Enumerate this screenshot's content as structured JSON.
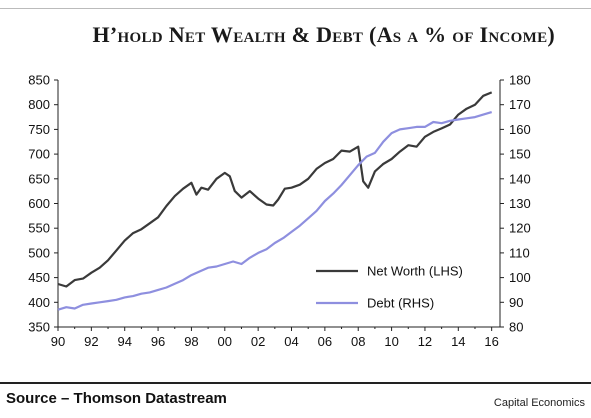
{
  "title": "H’hold Net Wealth & Debt (As a % of Income)",
  "source": "Source – Thomson Datastream",
  "credit": "Capital Economics",
  "chart_data": {
    "type": "line",
    "title": "H’hold Net Wealth & Debt (As a % of Income)",
    "xlabel": "",
    "ylabel_left": "",
    "ylabel_right": "",
    "x_ticks": [
      "90",
      "92",
      "94",
      "96",
      "98",
      "00",
      "02",
      "04",
      "06",
      "08",
      "10",
      "12",
      "14",
      "16"
    ],
    "xlim": [
      1990,
      2016.5
    ],
    "ylim_left": [
      350,
      850
    ],
    "ylim_right": [
      80,
      180
    ],
    "y_ticks_left": [
      350,
      400,
      450,
      500,
      550,
      600,
      650,
      700,
      750,
      800,
      850
    ],
    "y_ticks_right": [
      80,
      90,
      100,
      110,
      120,
      130,
      140,
      150,
      160,
      170,
      180
    ],
    "grid": false,
    "legend_position": "bottom-right",
    "series": [
      {
        "name": "Net Worth (LHS)",
        "axis": "left",
        "color": "#3a3a3a",
        "x": [
          1990.0,
          1990.5,
          1991.0,
          1991.5,
          1992.0,
          1992.5,
          1993.0,
          1993.5,
          1994.0,
          1994.5,
          1995.0,
          1995.5,
          1996.0,
          1996.5,
          1997.0,
          1997.5,
          1998.0,
          1998.3,
          1998.6,
          1999.0,
          1999.5,
          2000.0,
          2000.3,
          2000.6,
          2001.0,
          2001.5,
          2002.0,
          2002.5,
          2002.9,
          2003.2,
          2003.6,
          2004.0,
          2004.5,
          2005.0,
          2005.5,
          2006.0,
          2006.5,
          2007.0,
          2007.5,
          2008.0,
          2008.3,
          2008.6,
          2009.0,
          2009.5,
          2010.0,
          2010.5,
          2011.0,
          2011.5,
          2012.0,
          2012.5,
          2013.0,
          2013.5,
          2014.0,
          2014.5,
          2015.0,
          2015.5,
          2016.0
        ],
        "values": [
          437,
          432,
          445,
          448,
          460,
          470,
          485,
          505,
          525,
          540,
          548,
          560,
          572,
          595,
          615,
          630,
          642,
          618,
          632,
          628,
          650,
          662,
          655,
          625,
          612,
          625,
          610,
          598,
          596,
          608,
          630,
          632,
          638,
          650,
          670,
          682,
          690,
          707,
          705,
          715,
          645,
          632,
          665,
          680,
          690,
          705,
          718,
          715,
          735,
          745,
          752,
          760,
          780,
          792,
          800,
          818,
          825
        ]
      },
      {
        "name": "Debt (RHS)",
        "axis": "right",
        "color": "#8e8fdf",
        "x": [
          1990.0,
          1990.5,
          1991.0,
          1991.5,
          1992.0,
          1992.5,
          1993.0,
          1993.5,
          1994.0,
          1994.5,
          1995.0,
          1995.5,
          1996.0,
          1996.5,
          1997.0,
          1997.5,
          1998.0,
          1998.5,
          1999.0,
          1999.5,
          2000.0,
          2000.5,
          2001.0,
          2001.5,
          2002.0,
          2002.5,
          2003.0,
          2003.5,
          2004.0,
          2004.5,
          2005.0,
          2005.5,
          2006.0,
          2006.5,
          2007.0,
          2007.5,
          2008.0,
          2008.5,
          2009.0,
          2009.5,
          2010.0,
          2010.5,
          2011.0,
          2011.5,
          2012.0,
          2012.5,
          2013.0,
          2013.5,
          2014.0,
          2014.5,
          2015.0,
          2015.5,
          2016.0
        ],
        "values": [
          87,
          88,
          87.5,
          89,
          89.5,
          90,
          90.5,
          91,
          92,
          92.5,
          93.5,
          94,
          95,
          96,
          97.5,
          99,
          101,
          102.5,
          104,
          104.5,
          105.5,
          106.5,
          105.5,
          108,
          110,
          111.5,
          114,
          116,
          118.5,
          121,
          124,
          127,
          131,
          134,
          137.5,
          141.5,
          145.5,
          149,
          150.5,
          155,
          158.5,
          160,
          160.5,
          161,
          161,
          163,
          162.5,
          163.5,
          164,
          164.5,
          165,
          166,
          167
        ]
      }
    ]
  }
}
